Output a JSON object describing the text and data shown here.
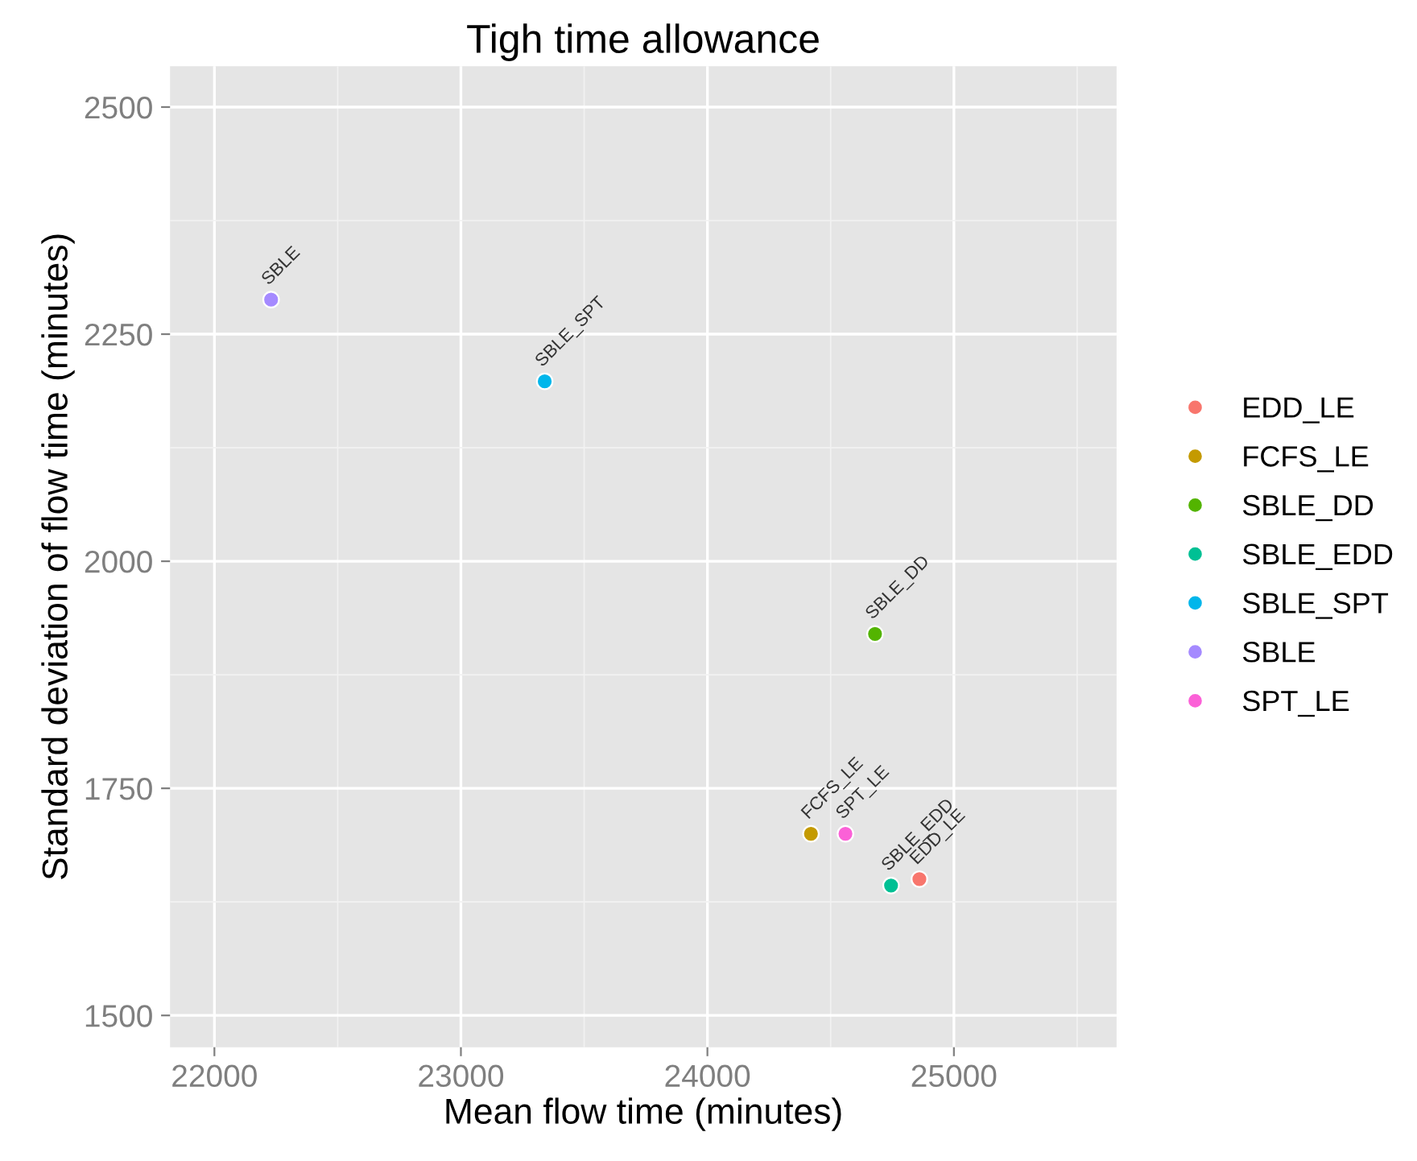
{
  "chart_data": {
    "type": "scatter",
    "title": "Tigh time allowance",
    "xlabel": "Mean flow time (minutes)",
    "ylabel": "Standard deviation of flow time (minutes)",
    "xlim": [
      21820,
      25660
    ],
    "ylim": [
      1465,
      2545
    ],
    "xticks": [
      22000,
      23000,
      24000,
      25000
    ],
    "yticks": [
      1500,
      1750,
      2000,
      2250,
      2500
    ],
    "grid": true,
    "legend": "right",
    "marker": "circle",
    "series": [
      {
        "name": "EDD_LE",
        "color": "#f8766d",
        "x": [
          24860
        ],
        "values": [
          1650
        ]
      },
      {
        "name": "FCFS_LE",
        "color": "#c49a00",
        "x": [
          24420
        ],
        "values": [
          1700
        ]
      },
      {
        "name": "SBLE_DD",
        "color": "#53b400",
        "x": [
          24680
        ],
        "values": [
          1920
        ]
      },
      {
        "name": "SBLE_EDD",
        "color": "#00c094",
        "x": [
          24745
        ],
        "values": [
          1643
        ]
      },
      {
        "name": "SBLE_SPT",
        "color": "#00b6eb",
        "x": [
          23340
        ],
        "values": [
          2198
        ]
      },
      {
        "name": "SBLE",
        "color": "#a58aff",
        "x": [
          22230
        ],
        "values": [
          2288
        ]
      },
      {
        "name": "SPT_LE",
        "color": "#fb61d7",
        "x": [
          24560
        ],
        "values": [
          1700
        ]
      }
    ]
  }
}
